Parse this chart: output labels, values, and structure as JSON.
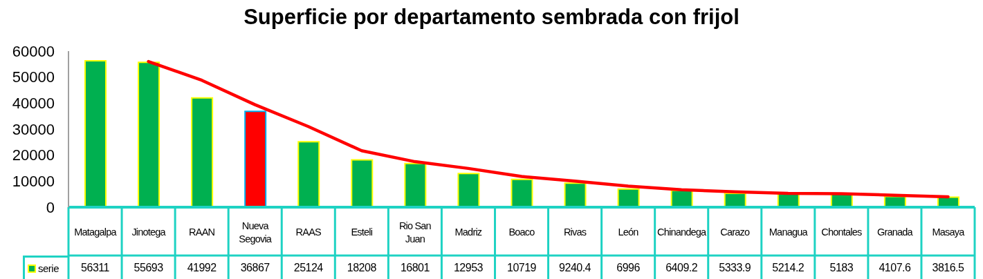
{
  "chart_data": {
    "type": "bar",
    "title": "Superficie por departamento sembrada con frijol",
    "categories": [
      "Matagalpa",
      "Jinotega",
      "RAAN",
      "Nueva Segovia",
      "RAAS",
      "Esteli",
      "Rio San Juan",
      "Madriz",
      "Boaco",
      "Rivas",
      "León",
      "Chinandega",
      "Carazo",
      "Managua",
      "Chontales",
      "Granada",
      "Masaya"
    ],
    "series": [
      {
        "name": "serie",
        "color": "#00b050",
        "colors": [
          "#00b050",
          "#00b050",
          "#00b050",
          "#ff0000",
          "#00b050",
          "#00b050",
          "#00b050",
          "#00b050",
          "#00b050",
          "#00b050",
          "#00b050",
          "#00b050",
          "#00b050",
          "#00b050",
          "#00b050",
          "#00b050",
          "#00b050"
        ],
        "values": [
          56311,
          55693,
          41992,
          36867,
          25124,
          18208,
          16801,
          12953,
          10719,
          9240.4,
          6996,
          6409.2,
          5333.9,
          5214.2,
          5183,
          4107.6,
          3816.5
        ],
        "value_labels": [
          "56311",
          "55693",
          "41992",
          "36867",
          "25124",
          "18208",
          "16801",
          "12953",
          "10719",
          "9240.4",
          "6996",
          "6409.2",
          "5333.9",
          "5214.2",
          "5183",
          "4107.6",
          "3816.5"
        ]
      },
      {
        "type": "line",
        "color": "#ff0000",
        "values": [
          null,
          56000,
          48800,
          39400,
          31000,
          21700,
          17500,
          14900,
          11800,
          10000,
          8100,
          6700,
          5900,
          5300,
          5200,
          4600,
          4000
        ]
      }
    ],
    "ylim": [
      0,
      60000
    ],
    "yticks": [
      0,
      10000,
      20000,
      30000,
      40000,
      50000,
      60000
    ],
    "legend": "bottom left",
    "grid": false,
    "marker": "none"
  }
}
